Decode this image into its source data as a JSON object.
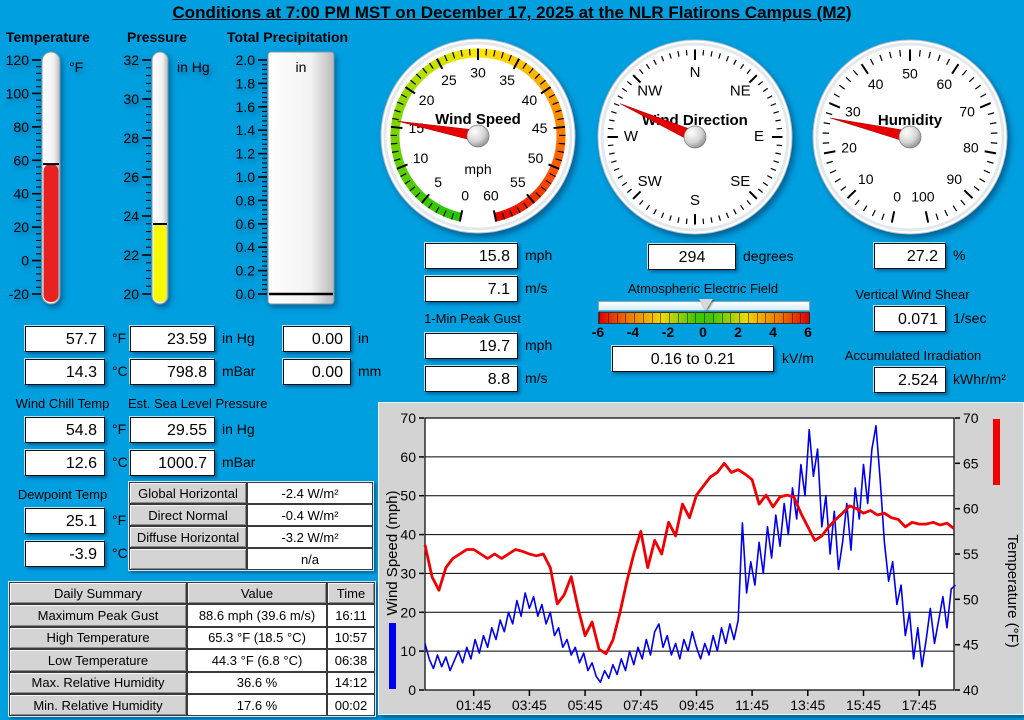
{
  "title": "Conditions at 7:00 PM MST on December 17, 2025 at the NLR Flatirons Campus (M2)",
  "columns": {
    "temperature": "Temperature",
    "pressure": "Pressure",
    "precipitation": "Total Precipitation"
  },
  "thermo": {
    "temperature": {
      "unit": "°F",
      "min": -20,
      "max": 120,
      "value": 57.7,
      "fill_color": "#e62222",
      "tick_labels": [
        "120",
        "100",
        "80",
        "60",
        "40",
        "20",
        "0",
        "-20"
      ]
    },
    "pressure": {
      "unit": "in Hg",
      "min": 20,
      "max": 32,
      "value": 23.59,
      "fill_color": "#f8f800",
      "tick_labels": [
        "32",
        "30",
        "28",
        "26",
        "24",
        "22",
        "20"
      ]
    },
    "precipitation": {
      "unit": "in",
      "min": 0,
      "max": 2,
      "value": 0,
      "fill_color": "#ffffff",
      "tick_labels": [
        "2.0",
        "1.8",
        "1.6",
        "1.4",
        "1.2",
        "1.0",
        "0.8",
        "0.6",
        "0.4",
        "0.2",
        "0.0"
      ]
    }
  },
  "gauges": {
    "wind_speed": {
      "title": "Wind Speed",
      "unit": "mph",
      "min": 0,
      "max": 60,
      "value": 15.8,
      "major_step": 5,
      "minor_step": 1,
      "labels": [
        "0",
        "5",
        "10",
        "15",
        "20",
        "25",
        "30",
        "35",
        "40",
        "45",
        "50",
        "55",
        "60"
      ],
      "arc_colors": [
        [
          0,
          "#22c400"
        ],
        [
          0.3,
          "#8cd800"
        ],
        [
          0.5,
          "#ffe800"
        ],
        [
          0.7,
          "#ff9800"
        ],
        [
          0.85,
          "#ff5000"
        ],
        [
          1,
          "#e60000"
        ]
      ],
      "needle_color": "#e60000"
    },
    "wind_direction": {
      "title": "Wind Direction",
      "value": 294,
      "compass_labels": [
        "N",
        "NE",
        "E",
        "SE",
        "S",
        "SW",
        "W",
        "NW"
      ],
      "minor_step_deg": 5.625,
      "major_step_deg": 45,
      "needle_color": "#e60000"
    },
    "humidity": {
      "title": "Humidity",
      "unit": "",
      "min": 0,
      "max": 100,
      "value": 27.2,
      "major_step": 10,
      "minor_step": 2,
      "labels": [
        "0",
        "10",
        "20",
        "30",
        "40",
        "50",
        "60",
        "70",
        "80",
        "90",
        "100"
      ],
      "needle_color": "#e60000"
    }
  },
  "readouts": {
    "temperature": {
      "f": "57.7",
      "f_unit": "°F",
      "c": "14.3",
      "c_unit": "°C"
    },
    "wind_chill": {
      "label": "Wind Chill Temp",
      "f": "54.8",
      "f_unit": "°F",
      "c": "12.6",
      "c_unit": "°C"
    },
    "dewpoint": {
      "label": "Dewpoint Temp",
      "f": "25.1",
      "f_unit": "°F",
      "c": "-3.9",
      "c_unit": "°C"
    },
    "pressure": {
      "inhg": "23.59",
      "inhg_unit": "in Hg",
      "mbar": "798.8",
      "mbar_unit": "mBar"
    },
    "sea_level": {
      "label": "Est. Sea Level Pressure",
      "inhg": "29.55",
      "inhg_unit": "in Hg",
      "mbar": "1000.7",
      "mbar_unit": "mBar"
    },
    "precipitation": {
      "in": "0.00",
      "in_unit": "in",
      "mm": "0.00",
      "mm_unit": "mm"
    },
    "wind": {
      "mph": "15.8",
      "mph_unit": "mph",
      "ms": "7.1",
      "ms_unit": "m/s",
      "gust_label": "1-Min Peak Gust",
      "gust_mph": "19.7",
      "gust_ms": "8.8"
    },
    "direction": {
      "value": "294",
      "unit": "degrees"
    },
    "humidity": {
      "value": "27.2",
      "unit": "%"
    },
    "shear": {
      "label": "Vertical Wind Shear",
      "value": "0.071",
      "unit": "1/sec"
    },
    "irradiation": {
      "label": "Accumulated Irradiation",
      "value": "2.524",
      "unit": "kWhr/m²"
    }
  },
  "electric_field": {
    "label": "Atmospheric Electric Field",
    "min": -6,
    "max": 6,
    "tick_step": 0.5,
    "tick_labels": [
      "-6",
      "-4",
      "-2",
      "0",
      "2",
      "4",
      "6"
    ],
    "pointer_value": 0.185,
    "value_text": "0.16 to 0.21",
    "unit": "kV/m"
  },
  "solar_table": {
    "rows": [
      {
        "label": "Global Horizontal",
        "value": "-2.4 W/m²"
      },
      {
        "label": "Direct Normal",
        "value": "-0.4 W/m²"
      },
      {
        "label": "Diffuse Horizontal",
        "value": "-3.2 W/m²"
      },
      {
        "label": "",
        "value": "n/a"
      }
    ]
  },
  "daily_summary": {
    "headers": [
      "Daily Summary",
      "Value",
      "Time"
    ],
    "rows": [
      {
        "label": "Maximum Peak Gust",
        "value": "88.6 mph (39.6 m/s)",
        "time": "16:11"
      },
      {
        "label": "High Temperature",
        "value": "65.3 °F  (18.5 °C)",
        "time": "10:57"
      },
      {
        "label": "Low Temperature",
        "value": "44.3 °F  (6.8 °C)",
        "time": "06:38"
      },
      {
        "label": "Max. Relative Humidity",
        "value": "36.6 %",
        "time": "14:12"
      },
      {
        "label": "Min. Relative Humidity",
        "value": "17.6 %",
        "time": "00:02"
      }
    ]
  },
  "chart_data": {
    "type": "line",
    "x_range_hours": [
      0,
      19
    ],
    "x_ticks": [
      "01:45",
      "03:45",
      "05:45",
      "07:45",
      "09:45",
      "11:45",
      "13:45",
      "15:45",
      "17:45"
    ],
    "x_tick_hours": [
      1.75,
      3.75,
      5.75,
      7.75,
      9.75,
      11.75,
      13.75,
      15.75,
      17.75
    ],
    "grid": "horizontal",
    "left_axis": {
      "label": "Wind Speed (mph)",
      "range": [
        0,
        70
      ],
      "ticks": [
        0,
        10,
        20,
        30,
        40,
        50,
        60,
        70
      ],
      "color": "#0000f0"
    },
    "right_axis": {
      "label": "Temperature (°F)",
      "range": [
        40,
        70
      ],
      "ticks": [
        40,
        45,
        50,
        55,
        60,
        65,
        70
      ],
      "color": "#f00000"
    },
    "series": [
      {
        "name": "Wind Speed",
        "axis": "left",
        "color": "#0000f0",
        "width": 1.6,
        "x_start": 0,
        "x_step": 0.15,
        "values": [
          12,
          8,
          5.5,
          9,
          6,
          8.5,
          5,
          7.5,
          10,
          7,
          11,
          8,
          13,
          9.5,
          14,
          11,
          16,
          13,
          18,
          15,
          20,
          17,
          23,
          19,
          25,
          21,
          24,
          19,
          22,
          17,
          20,
          14,
          16,
          11,
          13,
          9,
          11,
          7,
          9.5,
          5,
          7,
          3.5,
          2,
          5,
          3,
          6.5,
          4,
          8,
          5,
          10,
          6.5,
          11,
          8,
          13,
          9,
          15,
          17,
          11,
          14,
          9,
          12,
          8,
          13,
          10,
          15,
          11,
          8,
          12,
          9,
          14,
          10,
          16,
          12,
          17,
          13,
          18,
          43,
          25,
          33,
          27,
          38,
          30,
          42,
          34,
          45,
          37,
          48,
          40,
          52,
          44,
          58,
          50,
          67,
          55,
          62,
          42,
          50,
          35,
          46,
          31,
          38,
          48,
          36,
          52,
          44,
          58,
          48,
          62,
          68,
          54,
          38,
          28,
          33,
          22,
          27,
          14,
          20,
          8,
          16,
          6,
          13,
          21,
          12,
          18,
          24,
          16,
          26,
          27
        ]
      },
      {
        "name": "Temperature",
        "axis": "right",
        "color": "#f00000",
        "width": 2.8,
        "x_start": 0,
        "x_step": 0.25,
        "values": [
          56,
          52.5,
          51,
          53.5,
          54.5,
          55,
          55.5,
          55.5,
          55,
          54.5,
          55,
          54.5,
          55,
          55.5,
          55.3,
          55,
          54.8,
          55,
          53.5,
          49.5,
          50.5,
          52.5,
          49,
          46,
          47.5,
          44.5,
          44,
          45.5,
          48.5,
          52,
          55,
          57.5,
          53.5,
          56.5,
          55,
          58.5,
          57,
          60.5,
          59,
          61.5,
          62.5,
          63.5,
          64,
          65,
          64,
          64.3,
          63.8,
          63.2,
          60.5,
          61.5,
          60.2,
          61.3,
          61.5,
          61.3,
          59.5,
          58,
          56.5,
          57,
          58,
          58.8,
          59.5,
          60.3,
          60,
          59.5,
          59.8,
          59.3,
          59.5,
          59,
          58.8,
          58,
          58.5,
          58.3,
          58.3,
          58.5,
          58.2,
          58.4,
          57.8
        ]
      }
    ]
  }
}
